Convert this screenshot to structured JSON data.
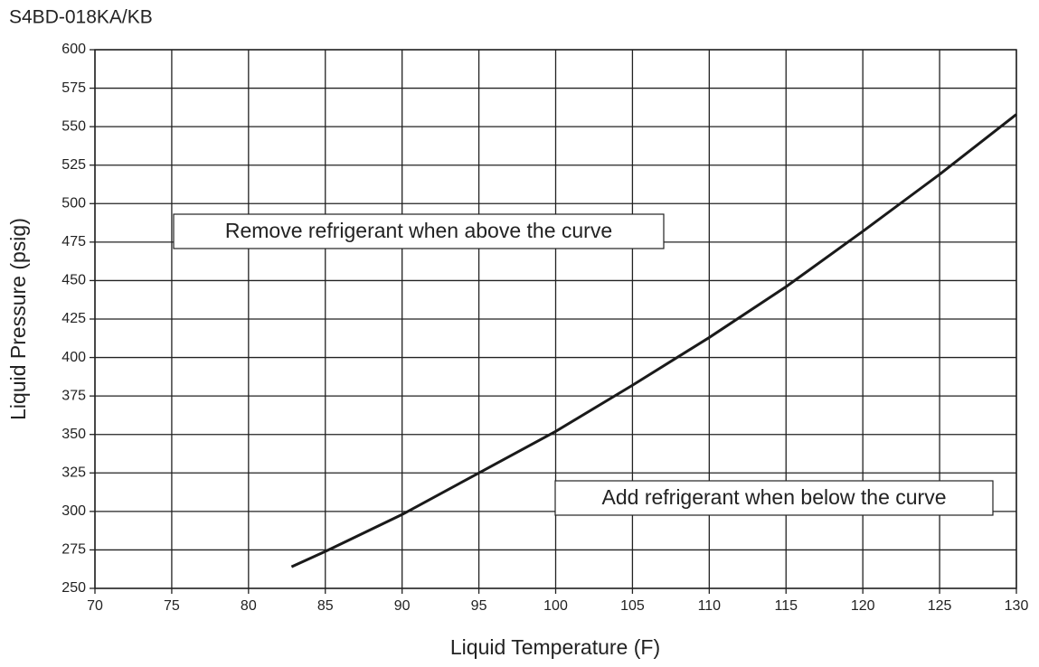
{
  "chart_data": {
    "type": "line",
    "title": "S4BD-018KA/KB",
    "x_label": "Liquid Temperature (F)",
    "y_label": "Liquid Pressure (psig)",
    "annotations": [
      "Remove refrigerant when above the curve",
      "Add refrigerant when below the curve"
    ],
    "x": [
      82.8,
      85,
      90,
      95,
      100,
      105,
      110,
      115,
      120,
      125,
      130
    ],
    "series": [
      {
        "color": "#1a1a1a",
        "values": [
          264,
          274,
          298,
          325,
          352,
          382,
          413,
          446,
          482,
          519,
          558
        ]
      }
    ],
    "xlim": [
      70,
      130
    ],
    "xticks": [
      70,
      75,
      80,
      85,
      90,
      95,
      100,
      105,
      110,
      115,
      120,
      125,
      130
    ],
    "ylim": [
      250,
      600
    ],
    "yticks": [
      250,
      275,
      300,
      325,
      350,
      375,
      400,
      425,
      450,
      475,
      500,
      525,
      550,
      575,
      600
    ],
    "grid": true
  }
}
